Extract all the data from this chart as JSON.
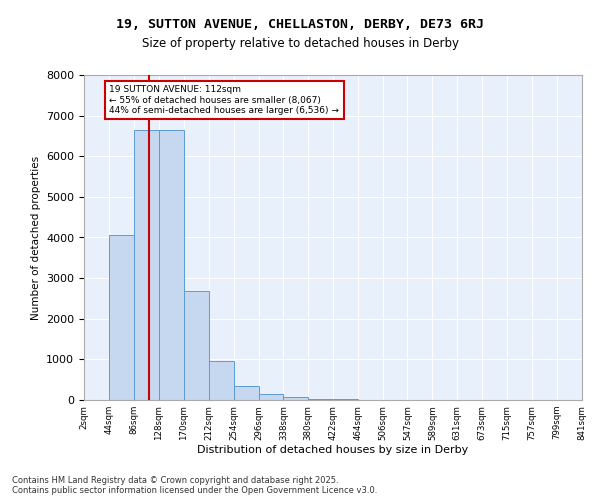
{
  "title1": "19, SUTTON AVENUE, CHELLASTON, DERBY, DE73 6RJ",
  "title2": "Size of property relative to detached houses in Derby",
  "xlabel": "Distribution of detached houses by size in Derby",
  "ylabel": "Number of detached properties",
  "annotation_line1": "19 SUTTON AVENUE: 112sqm",
  "annotation_line2": "← 55% of detached houses are smaller (8,067)",
  "annotation_line3": "44% of semi-detached houses are larger (6,536) →",
  "property_size": 112,
  "bin_edges": [
    2,
    44,
    86,
    128,
    170,
    212,
    254,
    296,
    338,
    380,
    422,
    464,
    506,
    547,
    589,
    631,
    673,
    715,
    757,
    799,
    841
  ],
  "bar_heights": [
    0,
    4050,
    6650,
    6650,
    2680,
    960,
    340,
    150,
    75,
    35,
    18,
    9,
    4,
    4,
    2,
    1,
    1,
    0,
    0,
    0
  ],
  "bar_color": "#c5d8f0",
  "bar_edge_color": "#5b9bd5",
  "red_line_color": "#cc0000",
  "annotation_box_color": "#cc0000",
  "background_color": "#e8f0fb",
  "ylim": [
    0,
    8000
  ],
  "yticks": [
    0,
    1000,
    2000,
    3000,
    4000,
    5000,
    6000,
    7000,
    8000
  ],
  "footer_line1": "Contains HM Land Registry data © Crown copyright and database right 2025.",
  "footer_line2": "Contains public sector information licensed under the Open Government Licence v3.0."
}
